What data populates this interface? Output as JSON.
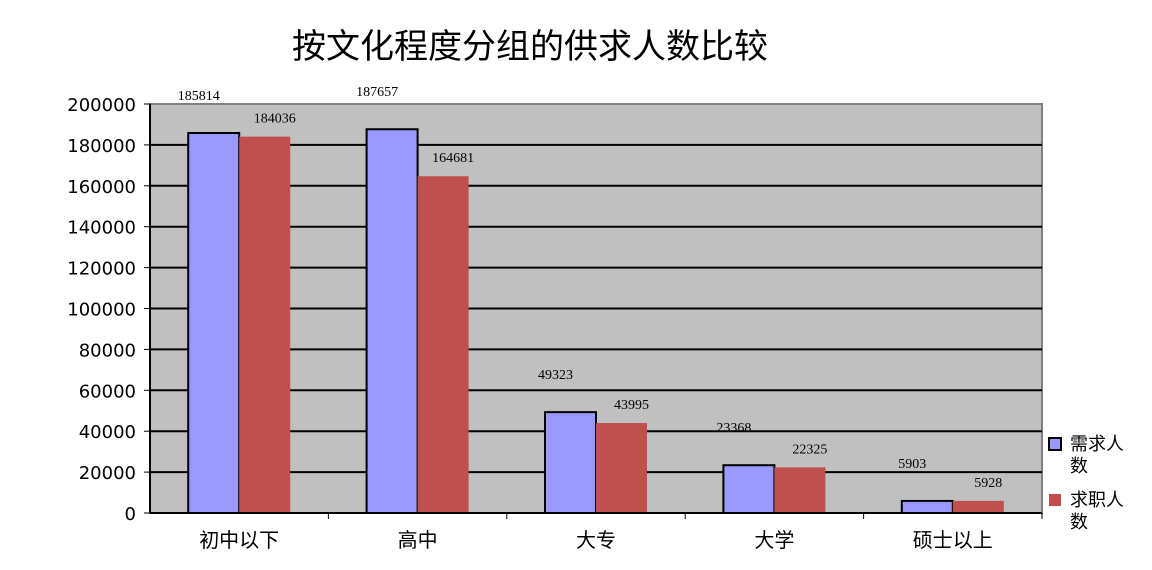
{
  "chart_data": {
    "type": "bar",
    "title": "按文化程度分组的供求人数比较",
    "categories": [
      "初中以下",
      "高中",
      "大专",
      "大学",
      "硕士以上"
    ],
    "series": [
      {
        "name": "需求人数",
        "values": [
          185814,
          187657,
          49323,
          23368,
          5903
        ],
        "color": "#9999ff"
      },
      {
        "name": "求职人数",
        "values": [
          184036,
          164681,
          43995,
          22325,
          5928
        ],
        "color": "#c0504d"
      }
    ],
    "ylim": [
      0,
      200000
    ],
    "yticks": [
      0,
      20000,
      40000,
      60000,
      80000,
      100000,
      120000,
      140000,
      160000,
      180000,
      200000
    ],
    "grid": true,
    "plot_background": "#c0c0c0",
    "legend": "right",
    "data_labels": true
  }
}
